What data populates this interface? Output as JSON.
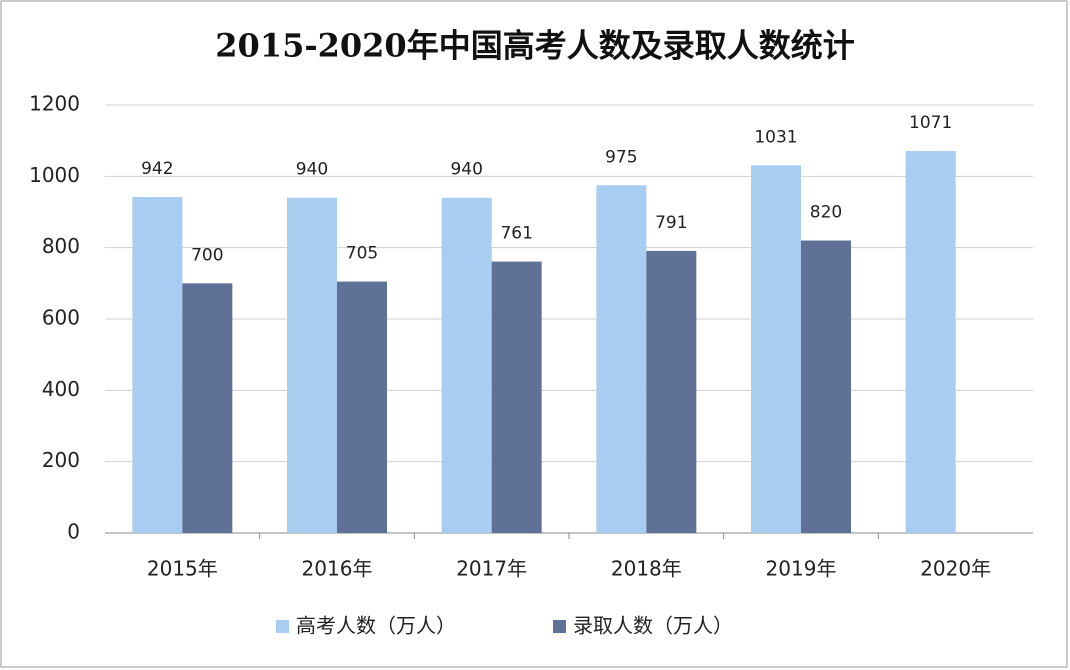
{
  "chart_data": {
    "type": "bar",
    "title": "2015-2020年中国高考人数及录取人数统计",
    "categories": [
      "2015年",
      "2016年",
      "2017年",
      "2018年",
      "2019年",
      "2020年"
    ],
    "series": [
      {
        "name": "高考人数（万人）",
        "color": "#a9cdf0",
        "values": [
          942,
          940,
          940,
          975,
          1031,
          1071
        ]
      },
      {
        "name": "录取人数（万人）",
        "color": "#5f7196",
        "values": [
          700,
          705,
          761,
          791,
          820,
          null
        ]
      }
    ],
    "ylim": [
      0,
      1200
    ],
    "yticks": [
      0,
      200,
      400,
      600,
      800,
      1000,
      1200
    ],
    "grid": true,
    "legend": "bottom"
  }
}
